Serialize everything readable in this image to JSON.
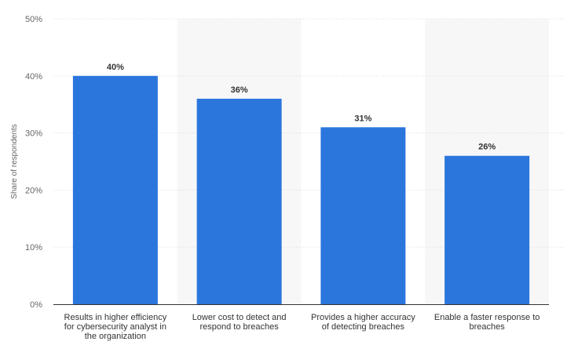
{
  "chart_data": {
    "type": "bar",
    "title": "",
    "xlabel": "",
    "ylabel": "Share of respondents",
    "ylim": [
      0,
      50
    ],
    "yticks": [
      "0%",
      "10%",
      "20%",
      "30%",
      "40%",
      "50%"
    ],
    "categories": [
      [
        "Results in higher efficiency",
        "for cybersecurity analyst in",
        "the organization"
      ],
      [
        "Lower cost to detect and",
        "respond to breaches"
      ],
      [
        "Provides a higher accuracy",
        "of detecting breaches"
      ],
      [
        "Enable a faster response to",
        "breaches"
      ]
    ],
    "values": [
      40,
      36,
      31,
      26
    ],
    "data_labels": [
      "40%",
      "36%",
      "31%",
      "26%"
    ],
    "grid": true,
    "legend": "none",
    "colors": {
      "bar": "#2a76dd",
      "band": "#f7f7f7",
      "grid": "#dddddd",
      "axis": "#333333"
    }
  }
}
